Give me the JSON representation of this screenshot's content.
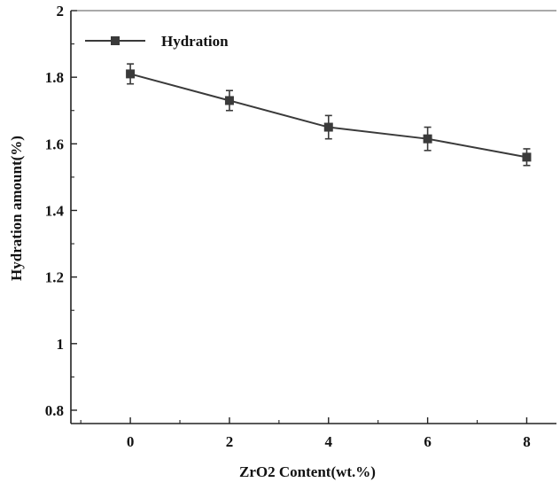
{
  "chart_data": {
    "type": "line",
    "title": "",
    "xlabel": "ZrO2 Content(wt.%)",
    "ylabel": "Hydration amount(%)",
    "x": [
      0,
      2,
      4,
      6,
      8
    ],
    "x_tick_labels": [
      "0",
      "2",
      "4",
      "6",
      "8"
    ],
    "y_tick_labels": [
      "0.8",
      "1",
      "1.2",
      "1.4",
      "1.6",
      "1.8",
      "2"
    ],
    "xlim": [
      -1.2,
      8.6
    ],
    "ylim": [
      0.76,
      2.0
    ],
    "grid": false,
    "legend_position": "top-left",
    "series": [
      {
        "name": "Hydration",
        "values": [
          1.81,
          1.73,
          1.65,
          1.615,
          1.56
        ],
        "error": [
          0.03,
          0.03,
          0.035,
          0.035,
          0.025
        ],
        "marker": "square",
        "color": "#3a3a3a"
      }
    ]
  }
}
